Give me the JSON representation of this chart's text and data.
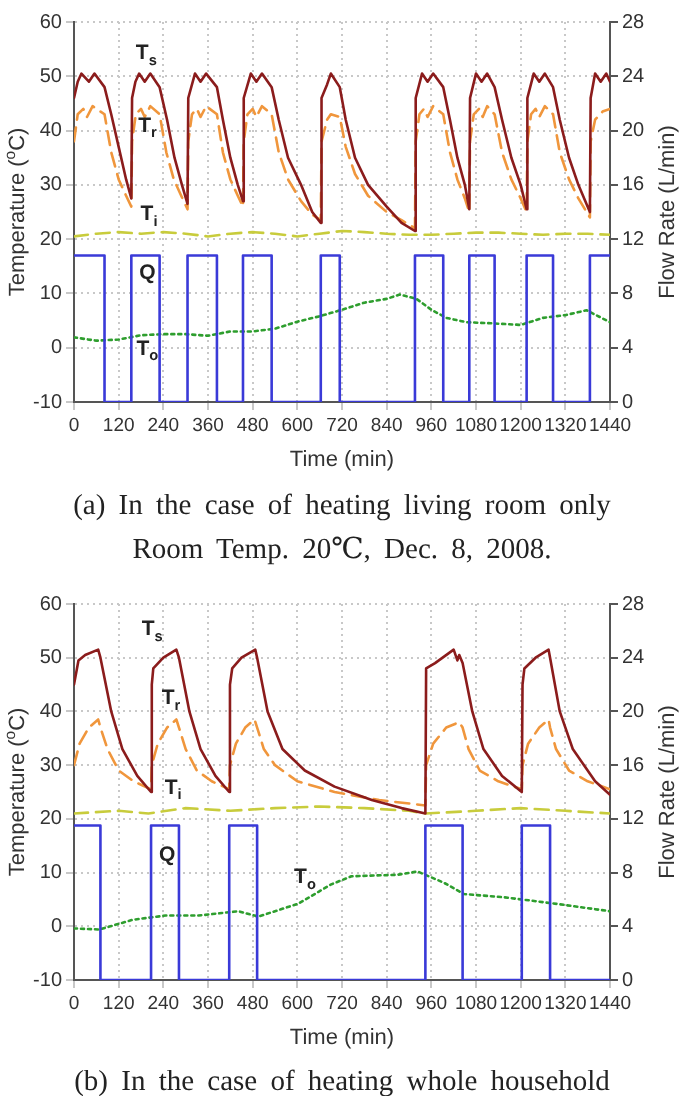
{
  "chart_data": [
    {
      "type": "line",
      "xlabel": "Time (min)",
      "ylabel": "Temperature ($^{o}$C)",
      "y2label": "Flow Rate (L/min)",
      "xlim": [
        0,
        1440
      ],
      "xticks": [
        0,
        120,
        240,
        360,
        480,
        600,
        720,
        840,
        960,
        1080,
        1200,
        1320,
        1440
      ],
      "ylim": [
        -10,
        60
      ],
      "yticks": [
        -10,
        0,
        10,
        20,
        30,
        40,
        50,
        60
      ],
      "y2lim": [
        0,
        28
      ],
      "y2ticks": [
        0,
        4,
        8,
        12,
        16,
        20,
        24,
        28
      ],
      "grid": true,
      "marker": "none",
      "series": [
        {
          "name": "Q",
          "color": "#3a3ad8",
          "axis": "y2",
          "line_style": "solid",
          "x": [
            0,
            82,
            82,
            154,
            154,
            230,
            230,
            305,
            305,
            384,
            384,
            454,
            454,
            531,
            531,
            663,
            663,
            714,
            714,
            916,
            916,
            992,
            992,
            1062,
            1062,
            1130,
            1130,
            1216,
            1216,
            1287,
            1287,
            1386,
            1386,
            1440
          ],
          "values": [
            10.8,
            10.8,
            0,
            0,
            10.8,
            10.8,
            0,
            0,
            10.8,
            10.8,
            0,
            0,
            10.8,
            10.8,
            0,
            0,
            10.8,
            10.8,
            0,
            0,
            10.8,
            10.8,
            0,
            0,
            10.8,
            10.8,
            0,
            0,
            10.8,
            10.8,
            0,
            0,
            10.8,
            10.8
          ]
        },
        {
          "name": "T$_{s}$",
          "color": "#8b1c1c",
          "line_style": "solid",
          "x": [
            0,
            10,
            20,
            40,
            55,
            82,
            100,
            120,
            140,
            154,
            156,
            165,
            175,
            190,
            205,
            230,
            250,
            270,
            290,
            305,
            307,
            325,
            340,
            355,
            384,
            400,
            420,
            440,
            454,
            456,
            475,
            490,
            505,
            531,
            550,
            575,
            610,
            640,
            663,
            665,
            680,
            690,
            714,
            730,
            755,
            790,
            840,
            880,
            916,
            918,
            935,
            950,
            965,
            992,
            1010,
            1030,
            1050,
            1062,
            1064,
            1080,
            1095,
            1110,
            1130,
            1150,
            1175,
            1200,
            1216,
            1218,
            1235,
            1250,
            1265,
            1287,
            1305,
            1330,
            1355,
            1386,
            1388,
            1400,
            1415,
            1430,
            1440
          ],
          "values": [
            46,
            49,
            50.5,
            49,
            50.5,
            48,
            43,
            37,
            31,
            27.5,
            46,
            49,
            50.5,
            49,
            50.5,
            48,
            42,
            35,
            30,
            26.5,
            46,
            50.5,
            49,
            50.5,
            48,
            42,
            35,
            30,
            27,
            46,
            50.5,
            49,
            50.5,
            48,
            42,
            35,
            30,
            25,
            23,
            46,
            48.5,
            50.5,
            48,
            42,
            35,
            30,
            26,
            23,
            21.5,
            46,
            50.5,
            49,
            50.5,
            48,
            42,
            35,
            30,
            25.5,
            46,
            50.5,
            49,
            50.5,
            48,
            42,
            35,
            30,
            25.5,
            46,
            50.5,
            49,
            50.5,
            48,
            42,
            35,
            30,
            25,
            46,
            50.5,
            49,
            50.5,
            49
          ]
        },
        {
          "name": "T$_{r}$",
          "color": "#f0963c",
          "line_style": "dashed",
          "x": [
            0,
            10,
            25,
            35,
            50,
            82,
            100,
            120,
            140,
            154,
            156,
            166,
            180,
            190,
            205,
            230,
            248,
            268,
            288,
            305,
            307,
            317,
            330,
            340,
            355,
            384,
            400,
            420,
            440,
            454,
            456,
            466,
            480,
            490,
            505,
            531,
            550,
            575,
            610,
            640,
            663,
            665,
            680,
            690,
            714,
            730,
            755,
            790,
            840,
            880,
            916,
            918,
            928,
            940,
            950,
            965,
            992,
            1010,
            1030,
            1050,
            1062,
            1064,
            1074,
            1088,
            1098,
            1110,
            1130,
            1150,
            1175,
            1200,
            1216,
            1218,
            1228,
            1240,
            1250,
            1265,
            1287,
            1305,
            1330,
            1355,
            1386,
            1388,
            1400,
            1420,
            1440
          ],
          "values": [
            38,
            43,
            44,
            42.5,
            44.5,
            43,
            36,
            31,
            28,
            26,
            38,
            43,
            44,
            42.5,
            44.5,
            43,
            36,
            31,
            28,
            25.5,
            38,
            43,
            44,
            42.5,
            44.5,
            43,
            36,
            31,
            28,
            26,
            38,
            43,
            44,
            42.5,
            44.5,
            43,
            36,
            31,
            27,
            24.5,
            23.5,
            38,
            42,
            43,
            42.5,
            37,
            32,
            28,
            25,
            23.5,
            22,
            38,
            43,
            44,
            42.5,
            44.5,
            43,
            36,
            31,
            27.5,
            25,
            38,
            43,
            44,
            42.5,
            44.5,
            43,
            36,
            31,
            27.5,
            25,
            38,
            43,
            44,
            42.5,
            44.5,
            43,
            36,
            31,
            27.5,
            24,
            38,
            42,
            43.5,
            44
          ]
        },
        {
          "name": "T$_{i}$",
          "color": "#c8cc3c",
          "line_style": "dashed",
          "x": [
            0,
            60,
            120,
            180,
            240,
            300,
            360,
            420,
            480,
            540,
            600,
            660,
            720,
            780,
            840,
            900,
            960,
            1020,
            1080,
            1140,
            1200,
            1260,
            1320,
            1380,
            1440
          ],
          "values": [
            20.5,
            21,
            21.3,
            21,
            21.3,
            21,
            20.5,
            21,
            21.3,
            21,
            20.5,
            21,
            21.5,
            21.3,
            21,
            20.8,
            20.8,
            21,
            21.2,
            21.2,
            21,
            20.8,
            21,
            21,
            20.8
          ]
        },
        {
          "name": "T$_{o}$",
          "color": "#2e9e2e",
          "line_style": "dotted",
          "x": [
            0,
            60,
            120,
            180,
            240,
            300,
            360,
            420,
            480,
            540,
            600,
            660,
            720,
            780,
            840,
            875,
            920,
            960,
            1000,
            1054,
            1120,
            1200,
            1260,
            1320,
            1377,
            1440
          ],
          "values": [
            1.9,
            1.3,
            1.5,
            2.3,
            2.5,
            2.5,
            2.2,
            3,
            3,
            3.5,
            4.8,
            5.8,
            7,
            8.3,
            9,
            9.8,
            9,
            7,
            5.5,
            4.7,
            4.5,
            4.2,
            5.5,
            6,
            6.9,
            4.7
          ]
        }
      ],
      "annotations": [
        "(a) In the case of heating living room only Room Temp. 20℃, Dec. 8, 2008."
      ]
    },
    {
      "type": "line",
      "xlabel": "Time (min)",
      "ylabel": "Temperature ($^{o}$C)",
      "y2label": "Flow Rate (L/min)",
      "xlim": [
        0,
        1440
      ],
      "xticks": [
        0,
        120,
        240,
        360,
        480,
        600,
        720,
        840,
        960,
        1080,
        1200,
        1320,
        1440
      ],
      "ylim": [
        -10,
        60
      ],
      "yticks": [
        -10,
        0,
        10,
        20,
        30,
        40,
        50,
        60
      ],
      "y2lim": [
        0,
        28
      ],
      "y2ticks": [
        0,
        4,
        8,
        12,
        16,
        20,
        24,
        28
      ],
      "grid": true,
      "marker": "none",
      "series": [
        {
          "name": "Q",
          "color": "#3a3ad8",
          "axis": "y2",
          "line_style": "solid",
          "x": [
            0,
            71,
            71,
            207,
            207,
            282,
            282,
            417,
            417,
            492,
            492,
            944,
            944,
            1044,
            1044,
            1203,
            1203,
            1279,
            1279,
            1440
          ],
          "values": [
            11.5,
            11.5,
            0,
            0,
            11.5,
            11.5,
            0,
            0,
            11.5,
            11.5,
            0,
            0,
            11.5,
            11.5,
            0,
            0,
            11.5,
            11.5,
            0,
            0
          ]
        },
        {
          "name": "T$_{s}$",
          "color": "#8b1c1c",
          "line_style": "solid",
          "x": [
            0,
            8,
            12,
            30,
            65,
            71,
            100,
            130,
            170,
            207,
            209,
            213,
            240,
            275,
            282,
            310,
            340,
            380,
            417,
            419,
            425,
            450,
            487,
            492,
            520,
            560,
            620,
            700,
            800,
            880,
            944,
            946,
            970,
            1020,
            1030,
            1035,
            1044,
            1070,
            1100,
            1150,
            1203,
            1205,
            1210,
            1240,
            1275,
            1279,
            1305,
            1340,
            1400,
            1440
          ],
          "values": [
            45,
            48,
            49.5,
            50.5,
            51.5,
            50,
            40,
            33,
            28,
            25,
            45,
            48,
            50,
            51.5,
            50,
            40,
            33,
            28,
            25,
            45,
            48,
            50,
            51.5,
            50,
            40,
            33,
            29,
            26,
            23.5,
            22,
            21,
            48,
            49,
            51.5,
            49.5,
            50.5,
            49,
            40,
            33,
            28,
            25,
            45,
            48,
            50,
            51.5,
            50,
            40,
            33,
            27,
            24.5
          ]
        },
        {
          "name": "T$_{r}$",
          "color": "#f0963c",
          "line_style": "dashed",
          "x": [
            0,
            15,
            40,
            65,
            71,
            90,
            120,
            160,
            207,
            209,
            225,
            250,
            275,
            282,
            300,
            330,
            370,
            417,
            419,
            435,
            460,
            485,
            492,
            510,
            540,
            600,
            700,
            820,
            944,
            946,
            965,
            1000,
            1035,
            1044,
            1060,
            1090,
            1140,
            1203,
            1205,
            1220,
            1250,
            1275,
            1279,
            1295,
            1330,
            1380,
            1440
          ],
          "values": [
            30,
            34,
            37,
            38.5,
            37,
            33,
            29,
            27,
            25.5,
            30,
            34,
            37,
            38.5,
            37,
            33,
            29,
            27,
            25.5,
            30,
            34,
            37,
            38.5,
            37,
            33,
            30,
            27,
            25,
            23.5,
            22.5,
            30,
            34,
            37,
            38,
            37,
            33,
            29,
            27,
            25.5,
            30,
            34,
            37,
            38.5,
            37,
            33,
            29,
            27,
            25.5
          ]
        },
        {
          "name": "T$_{i}$",
          "color": "#c8cc3c",
          "line_style": "dashed",
          "x": [
            0,
            120,
            200,
            300,
            420,
            540,
            660,
            780,
            900,
            944,
            1080,
            1200,
            1320,
            1440
          ],
          "values": [
            21,
            21.5,
            21,
            22,
            21.5,
            22,
            22.3,
            22,
            21.5,
            21,
            21.5,
            22,
            21.5,
            21
          ]
        },
        {
          "name": "T$_{o}$",
          "color": "#2e9e2e",
          "line_style": "dotted",
          "x": [
            0,
            68,
            157,
            246,
            335,
            442,
            495,
            602,
            691,
            745,
            870,
            923,
            994,
            1048,
            1155,
            1226,
            1315,
            1440
          ],
          "values": [
            -0.4,
            -0.6,
            1.2,
            2,
            2,
            2.8,
            1.8,
            4.2,
            7.8,
            9.3,
            9.6,
            10.2,
            8.1,
            6,
            5.4,
            4.8,
            4,
            2.8
          ]
        }
      ],
      "annotations": [
        "(b) In the case of heating whole household"
      ]
    }
  ]
}
